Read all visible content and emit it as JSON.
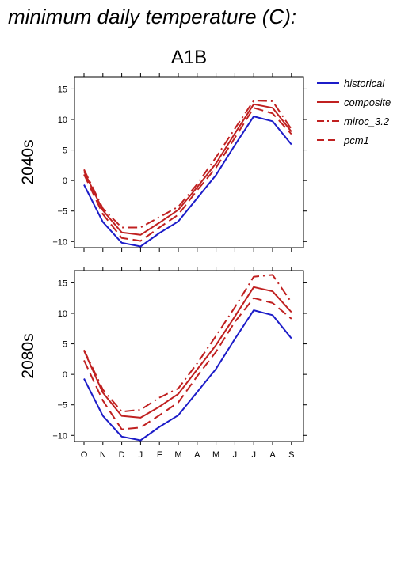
{
  "header": {
    "title": "minimum daily temperature (C):"
  },
  "colors": {
    "historical": "#1c1cc8",
    "projection": "#c02020",
    "axis": "#000000",
    "background": "#ffffff"
  },
  "chart_data": {
    "type": "line",
    "scenario": "A1B",
    "x": [
      "O",
      "N",
      "D",
      "J",
      "F",
      "M",
      "A",
      "M",
      "J",
      "J",
      "A",
      "S"
    ],
    "ylim": [
      -11,
      17
    ],
    "yticks": [
      -10,
      -5,
      0,
      5,
      10,
      15
    ],
    "grid": false,
    "legend_position": "top-right",
    "legend": [
      "historical",
      "composite",
      "miroc_3.2",
      "pcm1"
    ],
    "panels": [
      {
        "label": "2040s",
        "series": [
          {
            "name": "historical",
            "line": "solid",
            "values": [
              -0.7,
              -6.8,
              -10.2,
              -10.8,
              -8.6,
              -6.7,
              -2.9,
              0.9,
              5.8,
              10.5,
              9.7,
              5.9
            ]
          },
          {
            "name": "composite",
            "line": "solid",
            "values": [
              1.5,
              -4.9,
              -8.5,
              -8.9,
              -6.9,
              -4.8,
              -1.1,
              2.8,
              7.7,
              12.5,
              11.9,
              8.0
            ]
          },
          {
            "name": "miroc_3.2",
            "line": "dashdot",
            "values": [
              1.8,
              -4.6,
              -7.7,
              -7.7,
              -6.0,
              -4.3,
              -0.6,
              3.8,
              8.5,
              13.1,
              13.0,
              8.4
            ]
          },
          {
            "name": "pcm1",
            "line": "dashed",
            "values": [
              1.0,
              -5.5,
              -9.4,
              -9.9,
              -7.7,
              -5.6,
              -1.6,
              2.1,
              7.0,
              11.9,
              11.0,
              7.6
            ]
          }
        ]
      },
      {
        "label": "2080s",
        "series": [
          {
            "name": "historical",
            "line": "solid",
            "values": [
              -0.7,
              -6.8,
              -10.2,
              -10.8,
              -8.6,
              -6.7,
              -2.9,
              0.9,
              5.8,
              10.5,
              9.7,
              5.9
            ]
          },
          {
            "name": "composite",
            "line": "solid",
            "values": [
              3.9,
              -3.0,
              -6.8,
              -7.1,
              -5.3,
              -3.2,
              0.8,
              4.8,
              9.5,
              14.3,
              13.6,
              10.2
            ]
          },
          {
            "name": "miroc_3.2",
            "line": "dashdot",
            "values": [
              4.0,
              -2.5,
              -6.1,
              -5.8,
              -3.8,
              -2.3,
              1.8,
              6.3,
              11.0,
              16.0,
              16.3,
              11.8
            ]
          },
          {
            "name": "pcm1",
            "line": "dashed",
            "values": [
              2.3,
              -4.3,
              -9.0,
              -8.7,
              -6.7,
              -4.6,
              -0.3,
              3.7,
              8.6,
              12.5,
              11.7,
              9.1
            ]
          }
        ]
      }
    ]
  }
}
